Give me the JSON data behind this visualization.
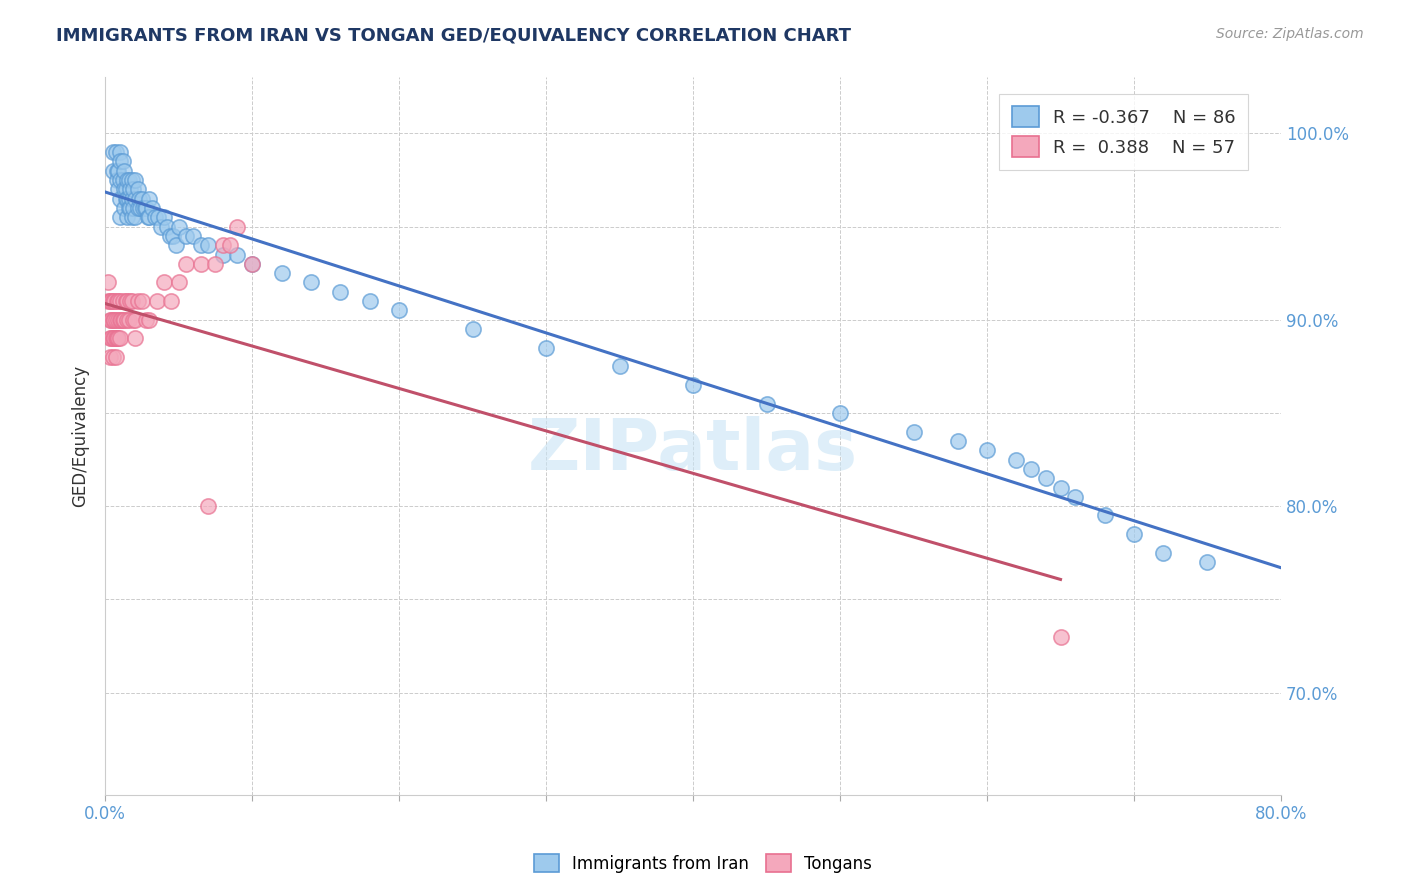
{
  "title": "IMMIGRANTS FROM IRAN VS TONGAN GED/EQUIVALENCY CORRELATION CHART",
  "source_text": "Source: ZipAtlas.com",
  "ylabel": "GED/Equivalency",
  "legend_R1": "-0.367",
  "legend_N1": "86",
  "legend_R2": "0.388",
  "legend_N2": "57",
  "color_iran": "#9ECAED",
  "color_iran_edge": "#5B9BD5",
  "color_tonga": "#F4A8BC",
  "color_tonga_edge": "#E87090",
  "color_line_iran": "#4472C4",
  "color_line_tonga": "#C0506A",
  "watermark_text": "ZIPatlas",
  "xlim": [
    0.0,
    0.8
  ],
  "ylim": [
    0.645,
    1.03
  ],
  "x_ticks": [
    0.0,
    0.1,
    0.2,
    0.3,
    0.4,
    0.5,
    0.6,
    0.7,
    0.8
  ],
  "y_ticks": [
    0.7,
    0.75,
    0.8,
    0.85,
    0.9,
    0.95,
    1.0
  ],
  "y_tick_labels": [
    "70.0%",
    "",
    "80.0%",
    "",
    "90.0%",
    "",
    "100.0%"
  ],
  "iran_x": [
    0.005,
    0.005,
    0.007,
    0.008,
    0.008,
    0.009,
    0.009,
    0.01,
    0.01,
    0.01,
    0.01,
    0.01,
    0.012,
    0.012,
    0.013,
    0.013,
    0.013,
    0.014,
    0.014,
    0.015,
    0.015,
    0.015,
    0.016,
    0.016,
    0.016,
    0.017,
    0.017,
    0.018,
    0.018,
    0.018,
    0.019,
    0.019,
    0.02,
    0.02,
    0.02,
    0.022,
    0.022,
    0.023,
    0.024,
    0.025,
    0.026,
    0.027,
    0.028,
    0.029,
    0.03,
    0.03,
    0.032,
    0.034,
    0.036,
    0.038,
    0.04,
    0.042,
    0.044,
    0.046,
    0.048,
    0.05,
    0.055,
    0.06,
    0.065,
    0.07,
    0.08,
    0.09,
    0.1,
    0.12,
    0.14,
    0.16,
    0.18,
    0.2,
    0.25,
    0.3,
    0.35,
    0.4,
    0.45,
    0.5,
    0.55,
    0.58,
    0.6,
    0.62,
    0.63,
    0.64,
    0.65,
    0.66,
    0.68,
    0.7,
    0.72,
    0.75
  ],
  "iran_y": [
    0.99,
    0.98,
    0.99,
    0.98,
    0.975,
    0.98,
    0.97,
    0.99,
    0.985,
    0.975,
    0.965,
    0.955,
    0.985,
    0.975,
    0.98,
    0.97,
    0.96,
    0.97,
    0.965,
    0.975,
    0.965,
    0.955,
    0.975,
    0.965,
    0.96,
    0.97,
    0.96,
    0.975,
    0.965,
    0.955,
    0.97,
    0.96,
    0.975,
    0.965,
    0.955,
    0.97,
    0.96,
    0.965,
    0.96,
    0.965,
    0.96,
    0.96,
    0.96,
    0.955,
    0.965,
    0.955,
    0.96,
    0.955,
    0.955,
    0.95,
    0.955,
    0.95,
    0.945,
    0.945,
    0.94,
    0.95,
    0.945,
    0.945,
    0.94,
    0.94,
    0.935,
    0.935,
    0.93,
    0.925,
    0.92,
    0.915,
    0.91,
    0.905,
    0.895,
    0.885,
    0.875,
    0.865,
    0.855,
    0.85,
    0.84,
    0.835,
    0.83,
    0.825,
    0.82,
    0.815,
    0.81,
    0.805,
    0.795,
    0.785,
    0.775,
    0.77
  ],
  "tonga_x": [
    0.002,
    0.002,
    0.003,
    0.003,
    0.003,
    0.003,
    0.004,
    0.004,
    0.004,
    0.005,
    0.005,
    0.005,
    0.005,
    0.006,
    0.006,
    0.006,
    0.007,
    0.007,
    0.007,
    0.008,
    0.008,
    0.009,
    0.009,
    0.009,
    0.01,
    0.01,
    0.01,
    0.011,
    0.012,
    0.012,
    0.013,
    0.014,
    0.015,
    0.015,
    0.016,
    0.017,
    0.018,
    0.019,
    0.02,
    0.02,
    0.022,
    0.025,
    0.028,
    0.03,
    0.035,
    0.04,
    0.045,
    0.05,
    0.055,
    0.065,
    0.07,
    0.075,
    0.08,
    0.085,
    0.09,
    0.65,
    0.1
  ],
  "tonga_y": [
    0.92,
    0.91,
    0.91,
    0.9,
    0.89,
    0.88,
    0.91,
    0.9,
    0.89,
    0.91,
    0.9,
    0.89,
    0.88,
    0.91,
    0.9,
    0.89,
    0.9,
    0.89,
    0.88,
    0.91,
    0.89,
    0.91,
    0.9,
    0.89,
    0.91,
    0.9,
    0.89,
    0.9,
    0.91,
    0.9,
    0.9,
    0.91,
    0.91,
    0.9,
    0.9,
    0.91,
    0.91,
    0.9,
    0.9,
    0.89,
    0.91,
    0.91,
    0.9,
    0.9,
    0.91,
    0.92,
    0.91,
    0.92,
    0.93,
    0.93,
    0.8,
    0.93,
    0.94,
    0.94,
    0.95,
    0.73,
    0.93
  ]
}
